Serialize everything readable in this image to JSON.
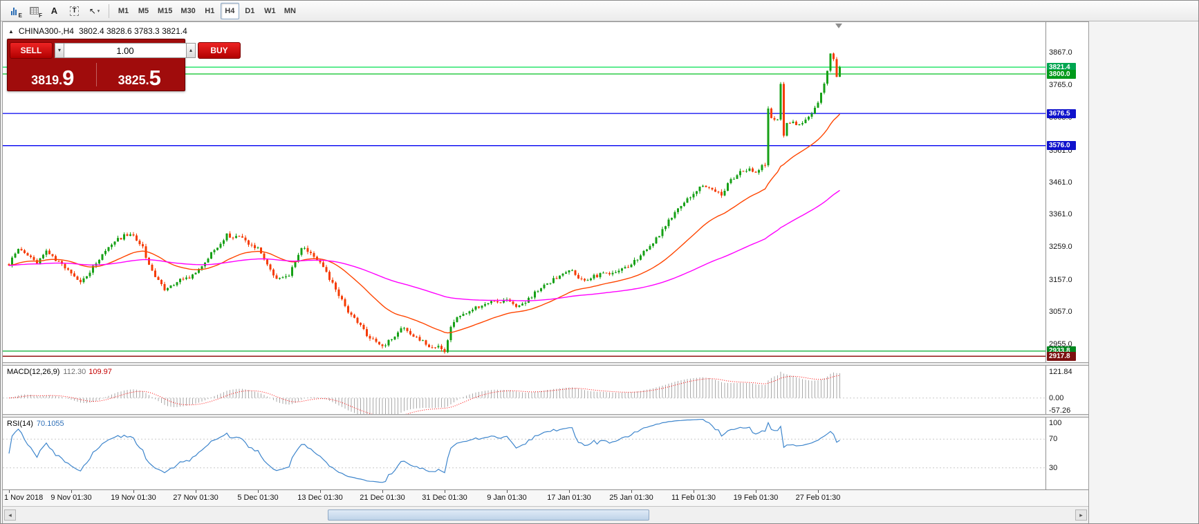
{
  "toolbar": {
    "icons": [
      {
        "name": "expert-advisors-icon",
        "type": "bars",
        "glyph": "E"
      },
      {
        "name": "profiles-icon",
        "type": "grid",
        "glyph": "F"
      },
      {
        "name": "cursor-tool-icon",
        "type": "letter",
        "glyph": "A"
      },
      {
        "name": "text-label-tool-icon",
        "type": "boxed",
        "glyph": "T"
      },
      {
        "name": "line-studies-icon",
        "type": "arrow",
        "glyph": "↖",
        "caret": "▾"
      }
    ],
    "timeframes": [
      "M1",
      "M5",
      "M15",
      "M30",
      "H1",
      "H4",
      "D1",
      "W1",
      "MN"
    ],
    "active_timeframe": "H4"
  },
  "chart": {
    "collapse_arrow": "▲",
    "symbol_title": "CHINA300-,H4",
    "ohlc": "3802.4 3828.6 3783.3 3821.4"
  },
  "trade_panel": {
    "sell_label": "SELL",
    "buy_label": "BUY",
    "volume": "1.00",
    "spin_down_glyph": "▾",
    "spin_up_glyph": "▴",
    "sell_price": {
      "main": "3819.",
      "big": "9"
    },
    "buy_price": {
      "main": "3825.",
      "big": "5"
    }
  },
  "scrollbar": {
    "left_glyph": "◂",
    "right_glyph": "▸"
  },
  "chart_data": {
    "type": "candlestick",
    "symbol": "CHINA300",
    "timeframe": "H4",
    "bars": 268,
    "price_axis": {
      "max": 3962,
      "min": 2899,
      "labels": [
        3867.0,
        3765.0,
        3663.0,
        3561.0,
        3461.0,
        3361.0,
        3259.0,
        3157.0,
        3057.0,
        2955.0
      ]
    },
    "x_labels": [
      {
        "bar": 0,
        "text": "1 Nov 2018"
      },
      {
        "bar": 20,
        "text": "9 Nov 01:30"
      },
      {
        "bar": 40,
        "text": "19 Nov 01:30"
      },
      {
        "bar": 60,
        "text": "27 Nov 01:30"
      },
      {
        "bar": 80,
        "text": "5 Dec 01:30"
      },
      {
        "bar": 100,
        "text": "13 Dec 01:30"
      },
      {
        "bar": 120,
        "text": "21 Dec 01:30"
      },
      {
        "bar": 140,
        "text": "31 Dec 01:30"
      },
      {
        "bar": 160,
        "text": "9 Jan 01:30"
      },
      {
        "bar": 180,
        "text": "17 Jan 01:30"
      },
      {
        "bar": 200,
        "text": "25 Jan 01:30"
      },
      {
        "bar": 220,
        "text": "11 Feb 01:30"
      },
      {
        "bar": 240,
        "text": "19 Feb 01:30"
      },
      {
        "bar": 260,
        "text": "27 Feb 01:30"
      }
    ],
    "levels": [
      {
        "price": 3821.4,
        "label": "3821.4",
        "line_color": "#00df50",
        "badge_bg": "#00a651",
        "name": "bid-price-line"
      },
      {
        "price": 3800.0,
        "label": "3800.0",
        "line_color": "#00c020",
        "badge_bg": "#009a1a",
        "name": "resistance-line-3800"
      },
      {
        "price": 3676.5,
        "label": "3676.5",
        "line_color": "#0000f0",
        "badge_bg": "#0f12cc",
        "name": "support-line-3676"
      },
      {
        "price": 3576.0,
        "label": "3576.0",
        "line_color": "#0000f0",
        "badge_bg": "#0f12cc",
        "name": "support-line-3576"
      },
      {
        "price": 2933.8,
        "label": "2933.8",
        "line_color": "#00a82e",
        "badge_bg": "#00871f",
        "name": "support-line-2933"
      },
      {
        "price": 2917.8,
        "label": "2917.8",
        "line_color": "#8b0000",
        "badge_bg": "#7c1010",
        "name": "level-line-2917"
      }
    ],
    "candle_colors": {
      "up": "#16a016",
      "down": "#f53b02"
    },
    "moving_averages": [
      {
        "period": 30,
        "color": "#ff4500",
        "name": "fast-ma-line"
      },
      {
        "period": 110,
        "color": "#ff00ff",
        "name": "slow-ma-line"
      }
    ],
    "price_path_anchors": [
      [
        0,
        3205
      ],
      [
        3,
        3255
      ],
      [
        6,
        3235
      ],
      [
        9,
        3212
      ],
      [
        12,
        3250
      ],
      [
        15,
        3218
      ],
      [
        18,
        3192
      ],
      [
        20,
        3176
      ],
      [
        23,
        3148
      ],
      [
        26,
        3180
      ],
      [
        30,
        3240
      ],
      [
        34,
        3276
      ],
      [
        38,
        3300
      ],
      [
        40,
        3292
      ],
      [
        43,
        3256
      ],
      [
        46,
        3182
      ],
      [
        50,
        3126
      ],
      [
        54,
        3150
      ],
      [
        58,
        3166
      ],
      [
        60,
        3180
      ],
      [
        63,
        3214
      ],
      [
        66,
        3250
      ],
      [
        70,
        3296
      ],
      [
        74,
        3290
      ],
      [
        77,
        3270
      ],
      [
        80,
        3256
      ],
      [
        83,
        3202
      ],
      [
        86,
        3162
      ],
      [
        90,
        3172
      ],
      [
        94,
        3254
      ],
      [
        97,
        3244
      ],
      [
        100,
        3212
      ],
      [
        103,
        3162
      ],
      [
        106,
        3106
      ],
      [
        109,
        3060
      ],
      [
        112,
        3022
      ],
      [
        115,
        2986
      ],
      [
        118,
        2962
      ],
      [
        120,
        2952
      ],
      [
        123,
        2968
      ],
      [
        126,
        3006
      ],
      [
        129,
        2992
      ],
      [
        132,
        2968
      ],
      [
        135,
        2952
      ],
      [
        138,
        2946
      ],
      [
        140,
        2932
      ],
      [
        142,
        3012
      ],
      [
        145,
        3046
      ],
      [
        148,
        3062
      ],
      [
        152,
        3076
      ],
      [
        156,
        3088
      ],
      [
        160,
        3092
      ],
      [
        163,
        3068
      ],
      [
        166,
        3086
      ],
      [
        170,
        3126
      ],
      [
        174,
        3152
      ],
      [
        178,
        3172
      ],
      [
        181,
        3188
      ],
      [
        184,
        3154
      ],
      [
        187,
        3164
      ],
      [
        190,
        3172
      ],
      [
        194,
        3182
      ],
      [
        198,
        3196
      ],
      [
        200,
        3206
      ],
      [
        203,
        3232
      ],
      [
        206,
        3262
      ],
      [
        210,
        3310
      ],
      [
        214,
        3370
      ],
      [
        218,
        3410
      ],
      [
        220,
        3426
      ],
      [
        223,
        3452
      ],
      [
        226,
        3440
      ],
      [
        229,
        3426
      ],
      [
        232,
        3468
      ],
      [
        235,
        3496
      ],
      [
        238,
        3506
      ],
      [
        240,
        3492
      ],
      [
        242,
        3516
      ],
      [
        243,
        3520
      ],
      [
        244,
        3690
      ],
      [
        245,
        3668
      ],
      [
        246,
        3652
      ],
      [
        247,
        3656
      ],
      [
        248,
        3772
      ],
      [
        249,
        3608
      ],
      [
        250,
        3652
      ],
      [
        252,
        3648
      ],
      [
        254,
        3642
      ],
      [
        256,
        3660
      ],
      [
        258,
        3682
      ],
      [
        260,
        3706
      ],
      [
        262,
        3768
      ],
      [
        264,
        3862
      ],
      [
        265,
        3846
      ],
      [
        266,
        3795
      ],
      [
        267,
        3821.4
      ]
    ],
    "indicators": {
      "macd": {
        "label": "MACD(12,26,9)",
        "value_main": "112.30",
        "value_signal": "109.97",
        "axis": [
          "121.84",
          "0.00",
          "-57.26"
        ],
        "axis_values": [
          121.84,
          0,
          -57.26
        ],
        "histogram_color": "#a8a8a8",
        "signal_color": "#ff0000"
      },
      "rsi": {
        "label": "RSI(14)",
        "value": "70.1055",
        "axis": [
          "100",
          "70",
          "30"
        ],
        "levels": [
          70,
          30
        ],
        "line_color": "#3d85cc"
      }
    }
  }
}
